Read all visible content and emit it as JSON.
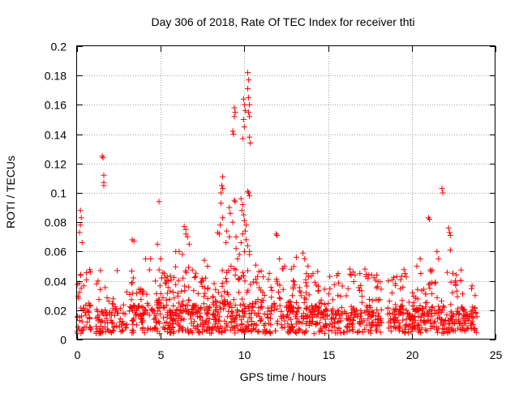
{
  "chart_data": {
    "type": "scatter",
    "title": "Day 306 of 2018, Rate Of TEC Index for receiver thti",
    "xlabel": "GPS time / hours",
    "ylabel": "ROTI / TECUs",
    "xlim": [
      0,
      25
    ],
    "ylim": [
      0,
      0.2
    ],
    "x_ticks": [
      0,
      5,
      10,
      15,
      20,
      25
    ],
    "x_tick_labels": [
      "0",
      "5",
      "10",
      "15",
      "20",
      "25"
    ],
    "y_ticks": [
      0,
      0.02,
      0.04,
      0.06,
      0.08,
      0.1,
      0.12,
      0.14,
      0.16,
      0.18,
      0.2
    ],
    "y_tick_labels": [
      "0",
      "0.02",
      "0.04",
      "0.06",
      "0.08",
      "0.1",
      "0.12",
      "0.14",
      "0.16",
      "0.18",
      "0.2"
    ],
    "grid": true,
    "marker": "+",
    "series_color": "#ff0000",
    "axis_color": "#000000",
    "grid_color": "#a0a0a0",
    "notable_points": [
      {
        "x": 0.2,
        "y": 0.088
      },
      {
        "x": 0.25,
        "y": 0.083
      },
      {
        "x": 0.2,
        "y": 0.078
      },
      {
        "x": 0.15,
        "y": 0.073
      },
      {
        "x": 0.3,
        "y": 0.066
      },
      {
        "x": 1.5,
        "y": 0.125
      },
      {
        "x": 1.55,
        "y": 0.124
      },
      {
        "x": 1.6,
        "y": 0.112
      },
      {
        "x": 1.6,
        "y": 0.107
      },
      {
        "x": 1.6,
        "y": 0.105
      },
      {
        "x": 1.4,
        "y": 0.047
      },
      {
        "x": 2.4,
        "y": 0.047
      },
      {
        "x": 3.3,
        "y": 0.068
      },
      {
        "x": 3.4,
        "y": 0.067
      },
      {
        "x": 4.1,
        "y": 0.055
      },
      {
        "x": 4.4,
        "y": 0.055
      },
      {
        "x": 4.9,
        "y": 0.094
      },
      {
        "x": 4.8,
        "y": 0.065
      },
      {
        "x": 5.0,
        "y": 0.055
      },
      {
        "x": 5.9,
        "y": 0.06
      },
      {
        "x": 6.1,
        "y": 0.06
      },
      {
        "x": 6.3,
        "y": 0.058
      },
      {
        "x": 6.4,
        "y": 0.077
      },
      {
        "x": 6.5,
        "y": 0.075
      },
      {
        "x": 6.5,
        "y": 0.072
      },
      {
        "x": 6.6,
        "y": 0.07
      },
      {
        "x": 6.7,
        "y": 0.065
      },
      {
        "x": 7.6,
        "y": 0.054
      },
      {
        "x": 7.8,
        "y": 0.05
      },
      {
        "x": 8.4,
        "y": 0.073
      },
      {
        "x": 8.5,
        "y": 0.072
      },
      {
        "x": 8.9,
        "y": 0.066
      },
      {
        "x": 9.1,
        "y": 0.07
      },
      {
        "x": 8.95,
        "y": 0.074
      },
      {
        "x": 8.7,
        "y": 0.111
      },
      {
        "x": 8.65,
        "y": 0.105
      },
      {
        "x": 8.7,
        "y": 0.103
      },
      {
        "x": 8.6,
        "y": 0.1
      },
      {
        "x": 8.6,
        "y": 0.093
      },
      {
        "x": 8.7,
        "y": 0.083
      },
      {
        "x": 8.55,
        "y": 0.078
      },
      {
        "x": 9.1,
        "y": 0.09
      },
      {
        "x": 9.15,
        "y": 0.086
      },
      {
        "x": 9.3,
        "y": 0.08
      },
      {
        "x": 9.4,
        "y": 0.095
      },
      {
        "x": 9.45,
        "y": 0.094
      },
      {
        "x": 9.5,
        "y": 0.07
      },
      {
        "x": 9.5,
        "y": 0.062
      },
      {
        "x": 9.6,
        "y": 0.055
      },
      {
        "x": 9.2,
        "y": 0.05
      },
      {
        "x": 9.8,
        "y": 0.096
      },
      {
        "x": 9.9,
        "y": 0.092
      },
      {
        "x": 9.85,
        "y": 0.088
      },
      {
        "x": 9.95,
        "y": 0.085
      },
      {
        "x": 10.0,
        "y": 0.081
      },
      {
        "x": 10.1,
        "y": 0.078
      },
      {
        "x": 10.05,
        "y": 0.074
      },
      {
        "x": 9.9,
        "y": 0.072
      },
      {
        "x": 10.1,
        "y": 0.068
      },
      {
        "x": 10.2,
        "y": 0.064
      },
      {
        "x": 9.8,
        "y": 0.066
      },
      {
        "x": 10.3,
        "y": 0.06
      },
      {
        "x": 10.3,
        "y": 0.058
      },
      {
        "x": 10.0,
        "y": 0.06
      },
      {
        "x": 9.7,
        "y": 0.058
      },
      {
        "x": 10.2,
        "y": 0.101
      },
      {
        "x": 10.25,
        "y": 0.1
      },
      {
        "x": 10.3,
        "y": 0.098
      },
      {
        "x": 9.4,
        "y": 0.158
      },
      {
        "x": 9.45,
        "y": 0.155
      },
      {
        "x": 9.4,
        "y": 0.152
      },
      {
        "x": 9.3,
        "y": 0.142
      },
      {
        "x": 9.35,
        "y": 0.14
      },
      {
        "x": 9.95,
        "y": 0.164
      },
      {
        "x": 10.0,
        "y": 0.16
      },
      {
        "x": 10.05,
        "y": 0.156
      },
      {
        "x": 9.95,
        "y": 0.15
      },
      {
        "x": 10.0,
        "y": 0.145
      },
      {
        "x": 9.9,
        "y": 0.137
      },
      {
        "x": 10.2,
        "y": 0.182
      },
      {
        "x": 10.25,
        "y": 0.177
      },
      {
        "x": 10.2,
        "y": 0.171
      },
      {
        "x": 10.25,
        "y": 0.165
      },
      {
        "x": 10.3,
        "y": 0.16
      },
      {
        "x": 10.25,
        "y": 0.155
      },
      {
        "x": 10.3,
        "y": 0.152
      },
      {
        "x": 10.3,
        "y": 0.138
      },
      {
        "x": 10.35,
        "y": 0.134
      },
      {
        "x": 11.9,
        "y": 0.072
      },
      {
        "x": 11.95,
        "y": 0.071
      },
      {
        "x": 12.1,
        "y": 0.055
      },
      {
        "x": 12.4,
        "y": 0.05
      },
      {
        "x": 12.8,
        "y": 0.048
      },
      {
        "x": 13.1,
        "y": 0.056
      },
      {
        "x": 13.5,
        "y": 0.059
      },
      {
        "x": 13.6,
        "y": 0.055
      },
      {
        "x": 13.8,
        "y": 0.05
      },
      {
        "x": 14.1,
        "y": 0.045
      },
      {
        "x": 15.1,
        "y": 0.043
      },
      {
        "x": 15.6,
        "y": 0.045
      },
      {
        "x": 16.3,
        "y": 0.048
      },
      {
        "x": 16.5,
        "y": 0.046
      },
      {
        "x": 16.9,
        "y": 0.045
      },
      {
        "x": 17.2,
        "y": 0.048
      },
      {
        "x": 17.6,
        "y": 0.044
      },
      {
        "x": 18.6,
        "y": 0.04
      },
      {
        "x": 19.1,
        "y": 0.043
      },
      {
        "x": 19.6,
        "y": 0.045
      },
      {
        "x": 20.3,
        "y": 0.05
      },
      {
        "x": 20.5,
        "y": 0.055
      },
      {
        "x": 21.0,
        "y": 0.083
      },
      {
        "x": 21.05,
        "y": 0.082
      },
      {
        "x": 21.5,
        "y": 0.06
      },
      {
        "x": 21.6,
        "y": 0.055
      },
      {
        "x": 21.8,
        "y": 0.103
      },
      {
        "x": 21.85,
        "y": 0.1
      },
      {
        "x": 22.2,
        "y": 0.076
      },
      {
        "x": 22.25,
        "y": 0.073
      },
      {
        "x": 22.3,
        "y": 0.071
      },
      {
        "x": 22.3,
        "y": 0.061
      },
      {
        "x": 22.6,
        "y": 0.04
      }
    ],
    "dense_segments": [
      {
        "x_start": 0.0,
        "x_end": 0.85,
        "y_low": 0.004,
        "y_base": 0.018,
        "y_high": 0.04,
        "density": 15
      },
      {
        "x_start": 1.1,
        "x_end": 3.0,
        "y_low": 0.004,
        "y_base": 0.016,
        "y_high": 0.034,
        "density": 12
      },
      {
        "x_start": 3.1,
        "x_end": 8.0,
        "y_low": 0.004,
        "y_base": 0.018,
        "y_high": 0.042,
        "density": 16
      },
      {
        "x_start": 8.0,
        "x_end": 11.0,
        "y_low": 0.004,
        "y_base": 0.02,
        "y_high": 0.044,
        "density": 16
      },
      {
        "x_start": 11.0,
        "x_end": 14.5,
        "y_low": 0.004,
        "y_base": 0.018,
        "y_high": 0.042,
        "density": 15
      },
      {
        "x_start": 14.5,
        "x_end": 18.2,
        "y_low": 0.004,
        "y_base": 0.016,
        "y_high": 0.038,
        "density": 14
      },
      {
        "x_start": 18.5,
        "x_end": 23.9,
        "y_low": 0.004,
        "y_base": 0.017,
        "y_high": 0.04,
        "density": 15
      }
    ]
  }
}
